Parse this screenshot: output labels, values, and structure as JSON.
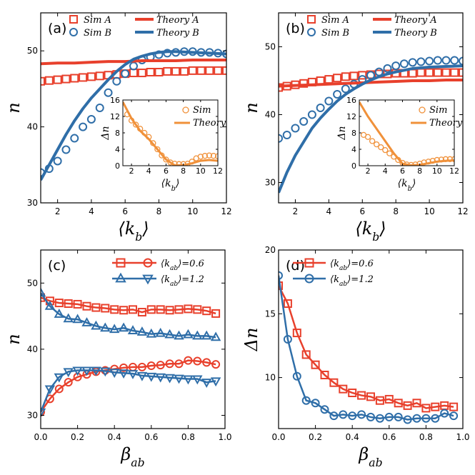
{
  "colors": {
    "red": "#e8402c",
    "blue": "#2f6ea8",
    "orange": "#f0913a"
  },
  "chart_data": [
    {
      "type": "line",
      "panel_label": "(a)",
      "xlabel": "⟨k_b⟩",
      "ylabel": "n",
      "xlim": [
        1,
        12
      ],
      "ylim": [
        30,
        55
      ],
      "xticks": [
        2,
        4,
        6,
        8,
        10,
        12
      ],
      "yticks": [
        30,
        40,
        50
      ],
      "series": [
        {
          "name": "Sim A",
          "kind": "scatter",
          "marker": "square",
          "color": "red",
          "x": [
            1,
            1.5,
            2,
            2.5,
            3,
            3.5,
            4,
            4.5,
            5,
            5.5,
            6,
            6.5,
            7,
            7.5,
            8,
            8.5,
            9,
            9.5,
            10,
            10.5,
            11,
            11.5,
            12
          ],
          "y": [
            46.0,
            46.1,
            46.2,
            46.3,
            46.4,
            46.5,
            46.6,
            46.7,
            46.8,
            46.9,
            47.0,
            47.1,
            47.1,
            47.2,
            47.2,
            47.3,
            47.3,
            47.3,
            47.4,
            47.4,
            47.4,
            47.4,
            47.4
          ]
        },
        {
          "name": "Sim B",
          "kind": "scatter",
          "marker": "circle",
          "color": "blue",
          "x": [
            1,
            1.5,
            2,
            2.5,
            3,
            3.5,
            4,
            4.5,
            5,
            5.5,
            6,
            6.5,
            7,
            7.5,
            8,
            8.5,
            9,
            9.5,
            10,
            10.5,
            11,
            11.5,
            12
          ],
          "y": [
            34.0,
            34.5,
            35.5,
            37.0,
            38.5,
            40.0,
            41.0,
            42.5,
            44.5,
            46.0,
            47.0,
            48.0,
            48.8,
            49.2,
            49.5,
            49.7,
            49.8,
            49.9,
            49.9,
            49.8,
            49.8,
            49.7,
            49.6
          ]
        },
        {
          "name": "Theory A",
          "kind": "line",
          "color": "red",
          "x": [
            1,
            2,
            3,
            4,
            5,
            6,
            7,
            8,
            9,
            10,
            11,
            12
          ],
          "y": [
            48.3,
            48.4,
            48.4,
            48.5,
            48.6,
            48.6,
            48.7,
            48.7,
            48.7,
            48.8,
            48.8,
            48.8
          ]
        },
        {
          "name": "Theory B",
          "kind": "line",
          "color": "blue",
          "x": [
            1,
            1.5,
            2,
            2.5,
            3,
            3.5,
            4,
            4.5,
            5,
            5.5,
            6,
            6.5,
            7,
            7.5,
            8,
            8.5,
            9,
            10,
            11,
            12
          ],
          "y": [
            33.0,
            35.0,
            37.0,
            39.0,
            40.8,
            42.4,
            43.8,
            45.0,
            46.2,
            47.3,
            48.2,
            48.9,
            49.3,
            49.6,
            49.8,
            49.9,
            49.9,
            49.8,
            49.7,
            49.6
          ]
        }
      ],
      "legend": {
        "placement": "top",
        "entries": [
          "Sim A",
          "Theory A",
          "Sim B",
          "Theory B"
        ]
      },
      "inset": {
        "xlabel": "⟨k_b⟩",
        "ylabel": "Δn",
        "xlim": [
          1,
          12
        ],
        "ylim": [
          0,
          16
        ],
        "xticks": [
          2,
          4,
          6,
          8,
          10,
          12
        ],
        "yticks": [
          0,
          4,
          8,
          12,
          16
        ],
        "legend": [
          "Sim",
          "Theory"
        ],
        "sim": {
          "x": [
            1.5,
            2,
            2.5,
            3,
            3.5,
            4,
            4.5,
            5,
            5.5,
            6,
            6.5,
            7,
            7.5,
            8,
            8.5,
            9,
            9.5,
            10,
            10.5,
            11,
            11.5,
            12
          ],
          "y": [
            12.5,
            11.0,
            10.0,
            9.0,
            8.0,
            7.0,
            5.5,
            4.0,
            2.5,
            1.5,
            0.8,
            0.5,
            0.4,
            0.4,
            0.5,
            1.0,
            1.8,
            2.2,
            2.4,
            2.5,
            2.4,
            2.3
          ]
        },
        "theory": {
          "x": [
            1,
            2,
            3,
            4,
            5,
            6,
            7,
            8,
            9,
            10,
            11,
            12
          ],
          "y": [
            15.5,
            11.5,
            8.5,
            6.5,
            4.0,
            1.5,
            0.1,
            0.1,
            0.6,
            1.2,
            1.4,
            1.2
          ]
        }
      }
    },
    {
      "type": "line",
      "panel_label": "(b)",
      "xlabel": "⟨k_b⟩",
      "ylabel": "n",
      "xlim": [
        1,
        12
      ],
      "ylim": [
        27,
        55
      ],
      "xticks": [
        2,
        4,
        6,
        8,
        10,
        12
      ],
      "yticks": [
        30,
        40,
        50
      ],
      "series": [
        {
          "name": "Sim A",
          "kind": "scatter",
          "marker": "square",
          "color": "red",
          "x": [
            1,
            1.5,
            2,
            2.5,
            3,
            3.5,
            4,
            4.5,
            5,
            5.5,
            6,
            6.5,
            7,
            7.5,
            8,
            8.5,
            9,
            9.5,
            10,
            10.5,
            11,
            11.5,
            12
          ],
          "y": [
            44.0,
            44.2,
            44.4,
            44.6,
            44.8,
            45.0,
            45.2,
            45.4,
            45.6,
            45.7,
            45.8,
            45.9,
            46.0,
            46.0,
            46.1,
            46.1,
            46.1,
            46.2,
            46.2,
            46.2,
            46.2,
            46.2,
            46.2
          ]
        },
        {
          "name": "Sim B",
          "kind": "scatter",
          "marker": "circle",
          "color": "blue",
          "x": [
            1,
            1.5,
            2,
            2.5,
            3,
            3.5,
            4,
            4.5,
            5,
            5.5,
            6,
            6.5,
            7,
            7.5,
            8,
            8.5,
            9,
            9.5,
            10,
            10.5,
            11,
            11.5,
            12
          ],
          "y": [
            36.5,
            37.0,
            38.0,
            39.0,
            40.0,
            41.0,
            42.0,
            43.0,
            43.8,
            44.5,
            45.2,
            45.8,
            46.3,
            46.8,
            47.2,
            47.5,
            47.7,
            47.8,
            47.9,
            48.0,
            48.0,
            48.0,
            47.9
          ]
        },
        {
          "name": "Theory A",
          "kind": "line",
          "color": "red",
          "x": [
            1,
            2,
            3,
            4,
            5,
            6,
            7,
            8,
            9,
            10,
            11,
            12
          ],
          "y": [
            44.2,
            44.3,
            44.4,
            44.5,
            44.6,
            44.7,
            44.8,
            44.9,
            45.0,
            45.0,
            45.1,
            45.1
          ]
        },
        {
          "name": "Theory B",
          "kind": "line",
          "color": "blue",
          "x": [
            1,
            1.5,
            2,
            2.5,
            3,
            3.5,
            4,
            4.5,
            5,
            5.5,
            6,
            6.5,
            7,
            7.5,
            8,
            9,
            10,
            11,
            12
          ],
          "y": [
            28.5,
            31.5,
            34.0,
            36.0,
            38.0,
            39.5,
            40.8,
            42.0,
            43.0,
            43.8,
            44.5,
            45.1,
            45.6,
            46.0,
            46.3,
            46.8,
            47.0,
            47.1,
            47.2
          ]
        }
      ],
      "legend": {
        "placement": "top",
        "entries": [
          "Sim A",
          "Theory A",
          "Sim B",
          "Theory B"
        ]
      },
      "inset": {
        "xlabel": "⟨k_b⟩",
        "ylabel": "Δn",
        "xlim": [
          1,
          12
        ],
        "ylim": [
          0,
          16
        ],
        "xticks": [
          2,
          4,
          6,
          8,
          10,
          12
        ],
        "yticks": [
          0,
          4,
          8,
          12,
          16
        ],
        "legend": [
          "Sim",
          "Theory"
        ],
        "sim": {
          "x": [
            1.5,
            2,
            2.5,
            3,
            3.5,
            4,
            4.5,
            5,
            5.5,
            6,
            6.5,
            7,
            7.5,
            8,
            8.5,
            9,
            9.5,
            10,
            10.5,
            11,
            11.5,
            12
          ],
          "y": [
            7.5,
            7.0,
            6.0,
            5.2,
            4.5,
            3.8,
            3.0,
            2.2,
            1.4,
            0.7,
            0.3,
            0.2,
            0.3,
            0.5,
            0.8,
            1.0,
            1.2,
            1.4,
            1.5,
            1.6,
            1.6,
            1.6
          ]
        },
        "theory": {
          "x": [
            1,
            2,
            3,
            4,
            5,
            6,
            7,
            8,
            9,
            10,
            11,
            12
          ],
          "y": [
            15.5,
            12.0,
            9.0,
            6.0,
            3.0,
            0.5,
            0.1,
            0.2,
            0.6,
            1.0,
            1.2,
            1.3
          ]
        }
      }
    },
    {
      "type": "line",
      "panel_label": "(c)",
      "xlabel": "β_ab",
      "ylabel": "n",
      "xlim": [
        0,
        1.0
      ],
      "ylim": [
        28,
        55
      ],
      "xticks": [
        0.0,
        0.2,
        0.4,
        0.6,
        0.8,
        1.0
      ],
      "yticks": [
        30,
        40,
        50
      ],
      "legend": {
        "placement": "top-right",
        "entries": [
          "⟨k_ab⟩=0.6",
          "⟨k_ab⟩=1.2"
        ]
      },
      "series": [
        {
          "name": "⟨k_ab⟩=0.6 upper",
          "marker": "square",
          "color": "red",
          "x": [
            0,
            0.05,
            0.1,
            0.15,
            0.2,
            0.25,
            0.3,
            0.35,
            0.4,
            0.45,
            0.5,
            0.55,
            0.6,
            0.65,
            0.7,
            0.75,
            0.8,
            0.85,
            0.9,
            0.95
          ],
          "y": [
            47.8,
            47.3,
            47.0,
            46.9,
            46.8,
            46.5,
            46.3,
            46.2,
            46.0,
            45.9,
            46.0,
            45.6,
            46.0,
            46.0,
            45.9,
            46.0,
            46.1,
            46.0,
            45.8,
            45.4
          ]
        },
        {
          "name": "⟨k_ab⟩=0.6 lower",
          "marker": "circle",
          "color": "red",
          "x": [
            0,
            0.05,
            0.1,
            0.15,
            0.2,
            0.25,
            0.3,
            0.35,
            0.4,
            0.45,
            0.5,
            0.55,
            0.6,
            0.65,
            0.7,
            0.75,
            0.8,
            0.85,
            0.9,
            0.95
          ],
          "y": [
            30.5,
            32.5,
            34.0,
            35.0,
            35.8,
            36.2,
            36.6,
            36.8,
            37.0,
            37.2,
            37.3,
            37.3,
            37.5,
            37.6,
            37.8,
            37.8,
            38.3,
            38.2,
            38.0,
            37.7
          ]
        },
        {
          "name": "⟨k_ab⟩=1.2 upper",
          "marker": "triangle-up",
          "color": "blue",
          "x": [
            0,
            0.05,
            0.1,
            0.15,
            0.2,
            0.25,
            0.3,
            0.35,
            0.4,
            0.45,
            0.5,
            0.55,
            0.6,
            0.65,
            0.7,
            0.75,
            0.8,
            0.85,
            0.9,
            0.95
          ],
          "y": [
            48.5,
            46.5,
            45.3,
            44.6,
            44.5,
            44.0,
            43.5,
            43.2,
            43.0,
            43.2,
            42.8,
            42.6,
            42.3,
            42.4,
            42.2,
            42.0,
            42.2,
            42.0,
            42.0,
            41.8
          ]
        },
        {
          "name": "⟨k_ab⟩=1.2 lower",
          "marker": "triangle-down",
          "color": "blue",
          "x": [
            0,
            0.05,
            0.1,
            0.15,
            0.2,
            0.25,
            0.3,
            0.35,
            0.4,
            0.45,
            0.5,
            0.55,
            0.6,
            0.65,
            0.7,
            0.75,
            0.8,
            0.85,
            0.9,
            0.95
          ],
          "y": [
            30.5,
            34.0,
            35.8,
            36.6,
            36.8,
            36.8,
            36.8,
            36.7,
            36.5,
            36.4,
            36.3,
            36.0,
            35.9,
            35.8,
            35.7,
            35.6,
            35.5,
            35.5,
            35.0,
            35.2
          ]
        }
      ]
    },
    {
      "type": "line",
      "panel_label": "(d)",
      "xlabel": "β_ab",
      "ylabel": "Δn",
      "xlim": [
        0,
        1.0
      ],
      "ylim": [
        6,
        20
      ],
      "xticks": [
        0.0,
        0.2,
        0.4,
        0.6,
        0.8,
        1.0
      ],
      "yticks": [
        10,
        15,
        20
      ],
      "legend": {
        "placement": "top-right",
        "entries": [
          "⟨k_ab⟩=0.6",
          "⟨k_ab⟩=1.2"
        ]
      },
      "series": [
        {
          "name": "⟨k_ab⟩=0.6",
          "marker": "square",
          "color": "red",
          "x": [
            0,
            0.05,
            0.1,
            0.15,
            0.2,
            0.25,
            0.3,
            0.35,
            0.4,
            0.45,
            0.5,
            0.55,
            0.6,
            0.65,
            0.7,
            0.75,
            0.8,
            0.85,
            0.9,
            0.95
          ],
          "y": [
            17.2,
            15.8,
            13.5,
            11.8,
            11.0,
            10.2,
            9.6,
            9.1,
            8.8,
            8.6,
            8.5,
            8.2,
            8.3,
            8.0,
            7.8,
            8.0,
            7.6,
            7.7,
            7.8,
            7.7
          ]
        },
        {
          "name": "⟨k_ab⟩=1.2",
          "marker": "circle",
          "color": "blue",
          "x": [
            0,
            0.05,
            0.1,
            0.15,
            0.2,
            0.25,
            0.3,
            0.35,
            0.4,
            0.45,
            0.5,
            0.55,
            0.6,
            0.65,
            0.7,
            0.75,
            0.8,
            0.85,
            0.9,
            0.95
          ],
          "y": [
            18.0,
            13.0,
            10.1,
            8.2,
            8.0,
            7.5,
            7.0,
            7.1,
            7.0,
            7.1,
            6.9,
            6.8,
            6.9,
            6.9,
            6.7,
            6.8,
            6.8,
            6.8,
            7.2,
            7.0
          ]
        }
      ]
    }
  ]
}
